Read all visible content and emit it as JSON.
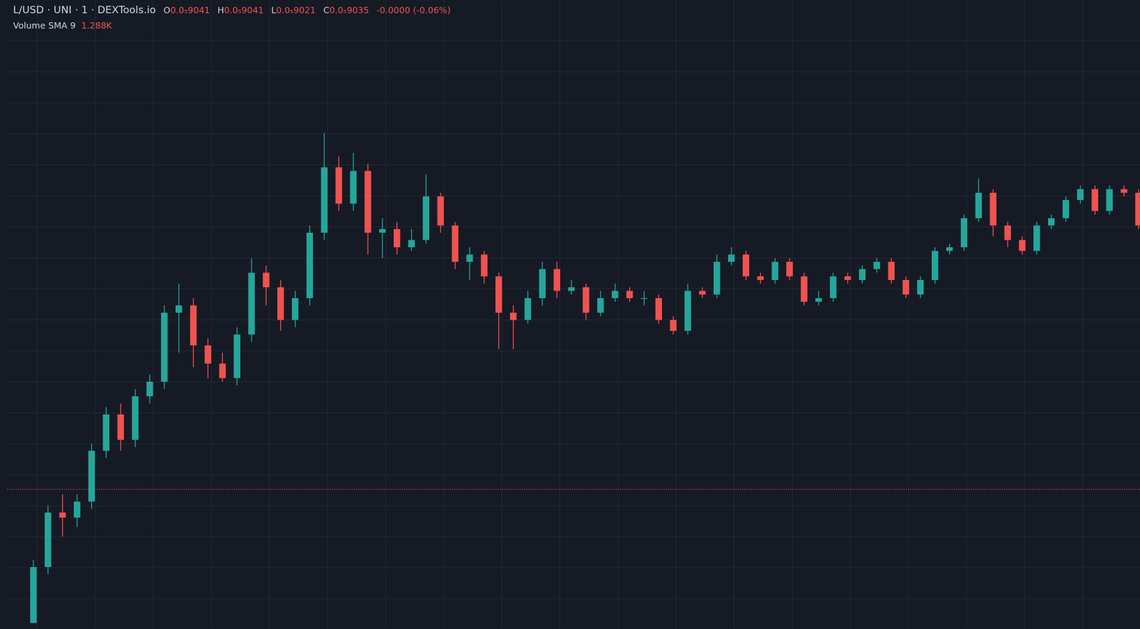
{
  "chart_data": {
    "type": "candlestick",
    "title": "L/USD · UNI · 1 · DEXTools.io",
    "legend": [
      {
        "label": "O",
        "value": "0.0₅9041"
      },
      {
        "label": "H",
        "value": "0.0₅9041"
      },
      {
        "label": "L",
        "value": "0.0₅9021"
      },
      {
        "label": "C",
        "value": "0.0₅9035"
      }
    ],
    "change": "-0.0000 (-0.06%)",
    "indicator": {
      "name": "Volume SMA 9",
      "value": "1.288K"
    },
    "up_color": "#26a69a",
    "down_color": "#ef5350",
    "grid": true,
    "ylim": [
      0,
      86.5
    ],
    "price_line": 19.2,
    "open": [
      0.8,
      8.5,
      16,
      15.3,
      17.5,
      24.5,
      29.5,
      26,
      32,
      34,
      43.5,
      44.5,
      39,
      36.5,
      34.5,
      40.5,
      49,
      47,
      42.5,
      45.5,
      54.5,
      63.5,
      58.5,
      63,
      54.5,
      55,
      52.5,
      53.5,
      59.5,
      55.5,
      50.5,
      51.5,
      48.5,
      43.5,
      42.5,
      45.5,
      49.5,
      46.5,
      47,
      43.5,
      45.5,
      46.5,
      45.5,
      45.5,
      42.5,
      41,
      46.5,
      46,
      50.5,
      51.5,
      48.5,
      48,
      50.5,
      48.5,
      45,
      45.5,
      48.5,
      48,
      49.5,
      50.5,
      48,
      46,
      48,
      52,
      52.5,
      56.5,
      60,
      55.5,
      53.5,
      52,
      55.5,
      56.5,
      59,
      60.5,
      57.5,
      60.5,
      60
    ],
    "high": [
      9.5,
      17,
      18.5,
      18.5,
      25.5,
      30.5,
      31,
      33,
      35,
      44.5,
      47.5,
      45.5,
      40,
      38,
      41.5,
      51,
      50,
      48,
      46.5,
      55.5,
      68.2,
      65,
      65.5,
      64,
      56.5,
      56,
      55,
      62.5,
      60,
      56,
      52.5,
      52,
      49,
      44.5,
      46.5,
      50.5,
      50.5,
      48,
      47.5,
      46.5,
      47.5,
      47,
      46.5,
      46,
      43,
      47.5,
      47,
      51.5,
      52.5,
      52,
      49,
      51,
      51,
      49,
      46.5,
      49,
      49,
      50,
      51,
      51,
      48.5,
      48.5,
      52.5,
      53,
      57,
      62,
      60.5,
      56,
      54,
      56,
      57,
      59.5,
      61,
      61,
      61,
      61,
      60.5
    ],
    "low": [
      0.8,
      7.5,
      12.7,
      14,
      16.5,
      23.5,
      24.5,
      25,
      31,
      33,
      38,
      36,
      34.5,
      34,
      33.5,
      39.5,
      44.5,
      41,
      41.5,
      44.5,
      53.5,
      57.5,
      57.5,
      51.5,
      51,
      51.5,
      52,
      53,
      54.5,
      49.5,
      48,
      47.5,
      38.5,
      38.5,
      42,
      44.5,
      45.5,
      46,
      42.5,
      43,
      45,
      45,
      44.5,
      42,
      40.5,
      40.5,
      45.5,
      45.5,
      50,
      48,
      47.5,
      47.5,
      48,
      44.5,
      44.5,
      45,
      47.5,
      47.5,
      49,
      47.5,
      45.5,
      45.5,
      47.5,
      51.5,
      52,
      56,
      54,
      52.5,
      51.5,
      51.5,
      55,
      56,
      58.5,
      57,
      57,
      59.5,
      55
    ],
    "close": [
      8.5,
      16,
      15.3,
      17.5,
      24.5,
      29.5,
      26,
      32,
      34,
      43.5,
      44.5,
      39,
      36.5,
      34.5,
      40.5,
      49,
      47,
      42.5,
      45.5,
      54.5,
      63.5,
      58.5,
      63,
      54.5,
      55,
      52.5,
      53.5,
      59.5,
      55.5,
      50.5,
      51.5,
      48.5,
      43.5,
      42.5,
      45.5,
      49.5,
      46.5,
      47,
      43.5,
      45.5,
      46.5,
      45.5,
      45.5,
      42.5,
      41,
      46.5,
      46,
      50.5,
      51.5,
      48.5,
      48,
      50.5,
      48.5,
      45,
      45.5,
      48.5,
      48,
      49.5,
      50.5,
      48,
      46,
      48,
      52,
      52.5,
      56.5,
      60,
      55.5,
      53.5,
      52,
      55.5,
      56.5,
      59,
      60.5,
      57.5,
      60.5,
      60,
      55.5
    ]
  }
}
